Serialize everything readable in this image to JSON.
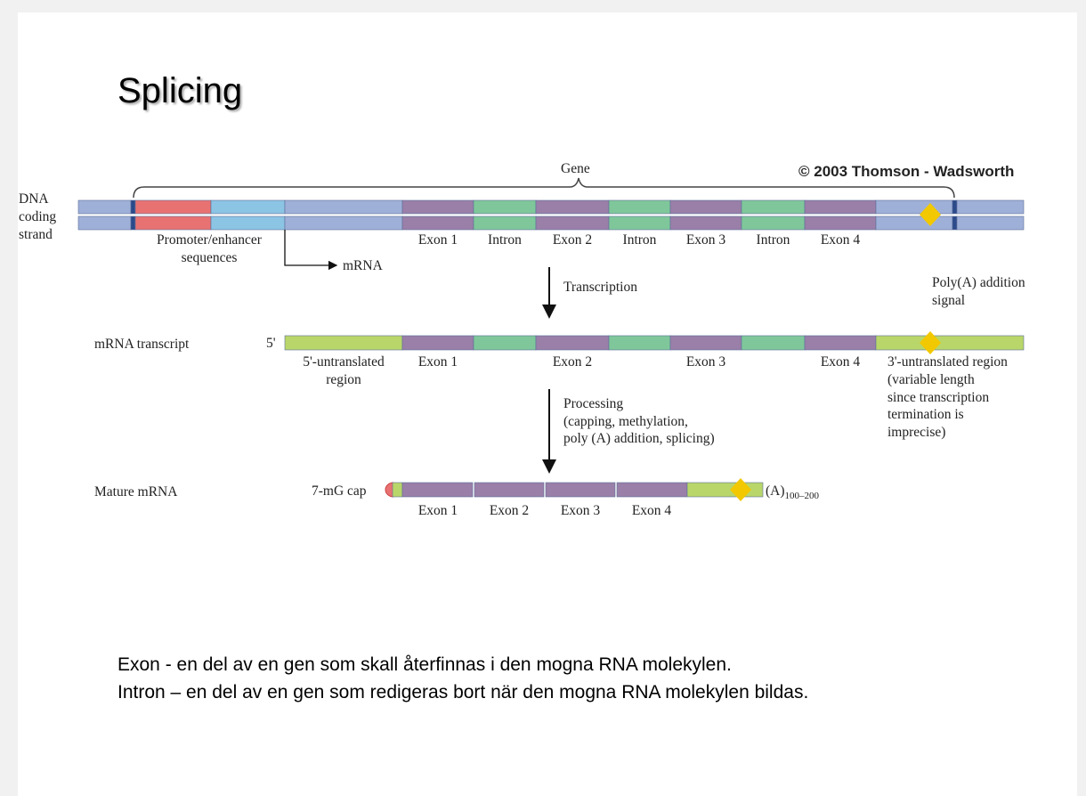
{
  "slide": {
    "title": "Splicing",
    "copyright": "© 2003 Thomson - Wadsworth",
    "definitions": [
      "Exon -  en del av en gen som skall återfinnas i den mogna RNA molekylen.",
      "Intron – en del av en gen som redigeras bort när den mogna RNA molekylen bildas."
    ]
  },
  "diagram": {
    "gene_label": "Gene",
    "dna_label": [
      "DNA",
      "coding",
      "strand"
    ],
    "promoter_label": [
      "Promoter/enhancer",
      "sequences"
    ],
    "mrna_arrow_label": "mRNA",
    "dna_segments": [
      "Exon 1",
      "Intron",
      "Exon 2",
      "Intron",
      "Exon 3",
      "Intron",
      "Exon 4"
    ],
    "transcription_label": "Transcription",
    "polya_signal_label": [
      "Poly(A) addition",
      "signal"
    ],
    "transcript_label": "mRNA transcript",
    "five_prime": "5'",
    "utr5_label": [
      "5'-untranslated",
      "region"
    ],
    "transcript_exons": [
      "Exon 1",
      "Exon 2",
      "Exon 3",
      "Exon 4"
    ],
    "utr3_label": [
      "3'-untranslated region",
      "(variable length",
      "since transcription",
      "termination is",
      "imprecise)"
    ],
    "processing_label": [
      "Processing",
      "(capping, methylation,",
      "poly (A) addition, splicing)"
    ],
    "mature_label": "Mature mRNA",
    "cap_label": "7-mG cap",
    "polya_tail": "(A)",
    "polya_tail_sub": "100–200",
    "mature_exons": [
      "Exon 1",
      "Exon 2",
      "Exon 3",
      "Exon 4"
    ]
  },
  "colors": {
    "flank": "#9fb0d8",
    "boundary": "#2b4a8a",
    "promoter": "#e87272",
    "enhancer": "#8cc4e4",
    "exon": "#9a7fa8",
    "intron": "#7fc79a",
    "utr": "#b9d66a",
    "polya_signal": "#f2c800"
  }
}
